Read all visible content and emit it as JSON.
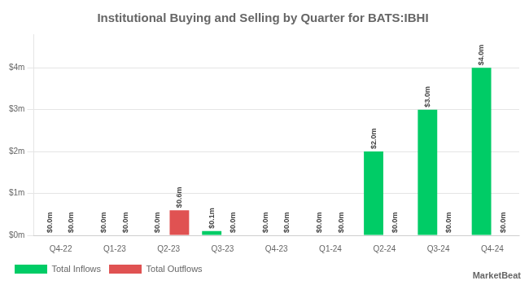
{
  "chart_data": {
    "type": "bar",
    "title": "Institutional Buying and Selling by Quarter for BATS:IBHI",
    "categories": [
      "Q4-22",
      "Q1-23",
      "Q2-23",
      "Q3-23",
      "Q4-23",
      "Q1-24",
      "Q2-24",
      "Q3-24",
      "Q4-24"
    ],
    "series": [
      {
        "name": "Total Inflows",
        "color": "#00cc66",
        "values": [
          0.0,
          0.0,
          0.0,
          0.1,
          0.0,
          0.0,
          2.0,
          3.0,
          4.0
        ],
        "value_labels": [
          "$0.0m",
          "$0.0m",
          "$0.0m",
          "$0.1m",
          "$0.0m",
          "$0.0m",
          "$2.0m",
          "$3.0m",
          "$4.0m"
        ]
      },
      {
        "name": "Total Outflows",
        "color": "#e05252",
        "values": [
          0.0,
          0.0,
          0.6,
          0.0,
          0.0,
          0.0,
          0.0,
          0.0,
          0.0
        ],
        "value_labels": [
          "$0.0m",
          "$0.0m",
          "$0.6m",
          "$0.0m",
          "$0.0m",
          "$0.0m",
          "$0.0m",
          "$0.0m",
          "$0.0m"
        ]
      }
    ],
    "ylim": [
      0,
      4.8
    ],
    "yticks": [
      {
        "value": 0,
        "label": "$0m"
      },
      {
        "value": 1,
        "label": "$1m"
      },
      {
        "value": 2,
        "label": "$2m"
      },
      {
        "value": 3,
        "label": "$3m"
      },
      {
        "value": 4,
        "label": "$4m"
      }
    ],
    "grid": true,
    "legend": "bottom",
    "data_labels": true,
    "annotations": [
      "MarketBeat"
    ]
  }
}
